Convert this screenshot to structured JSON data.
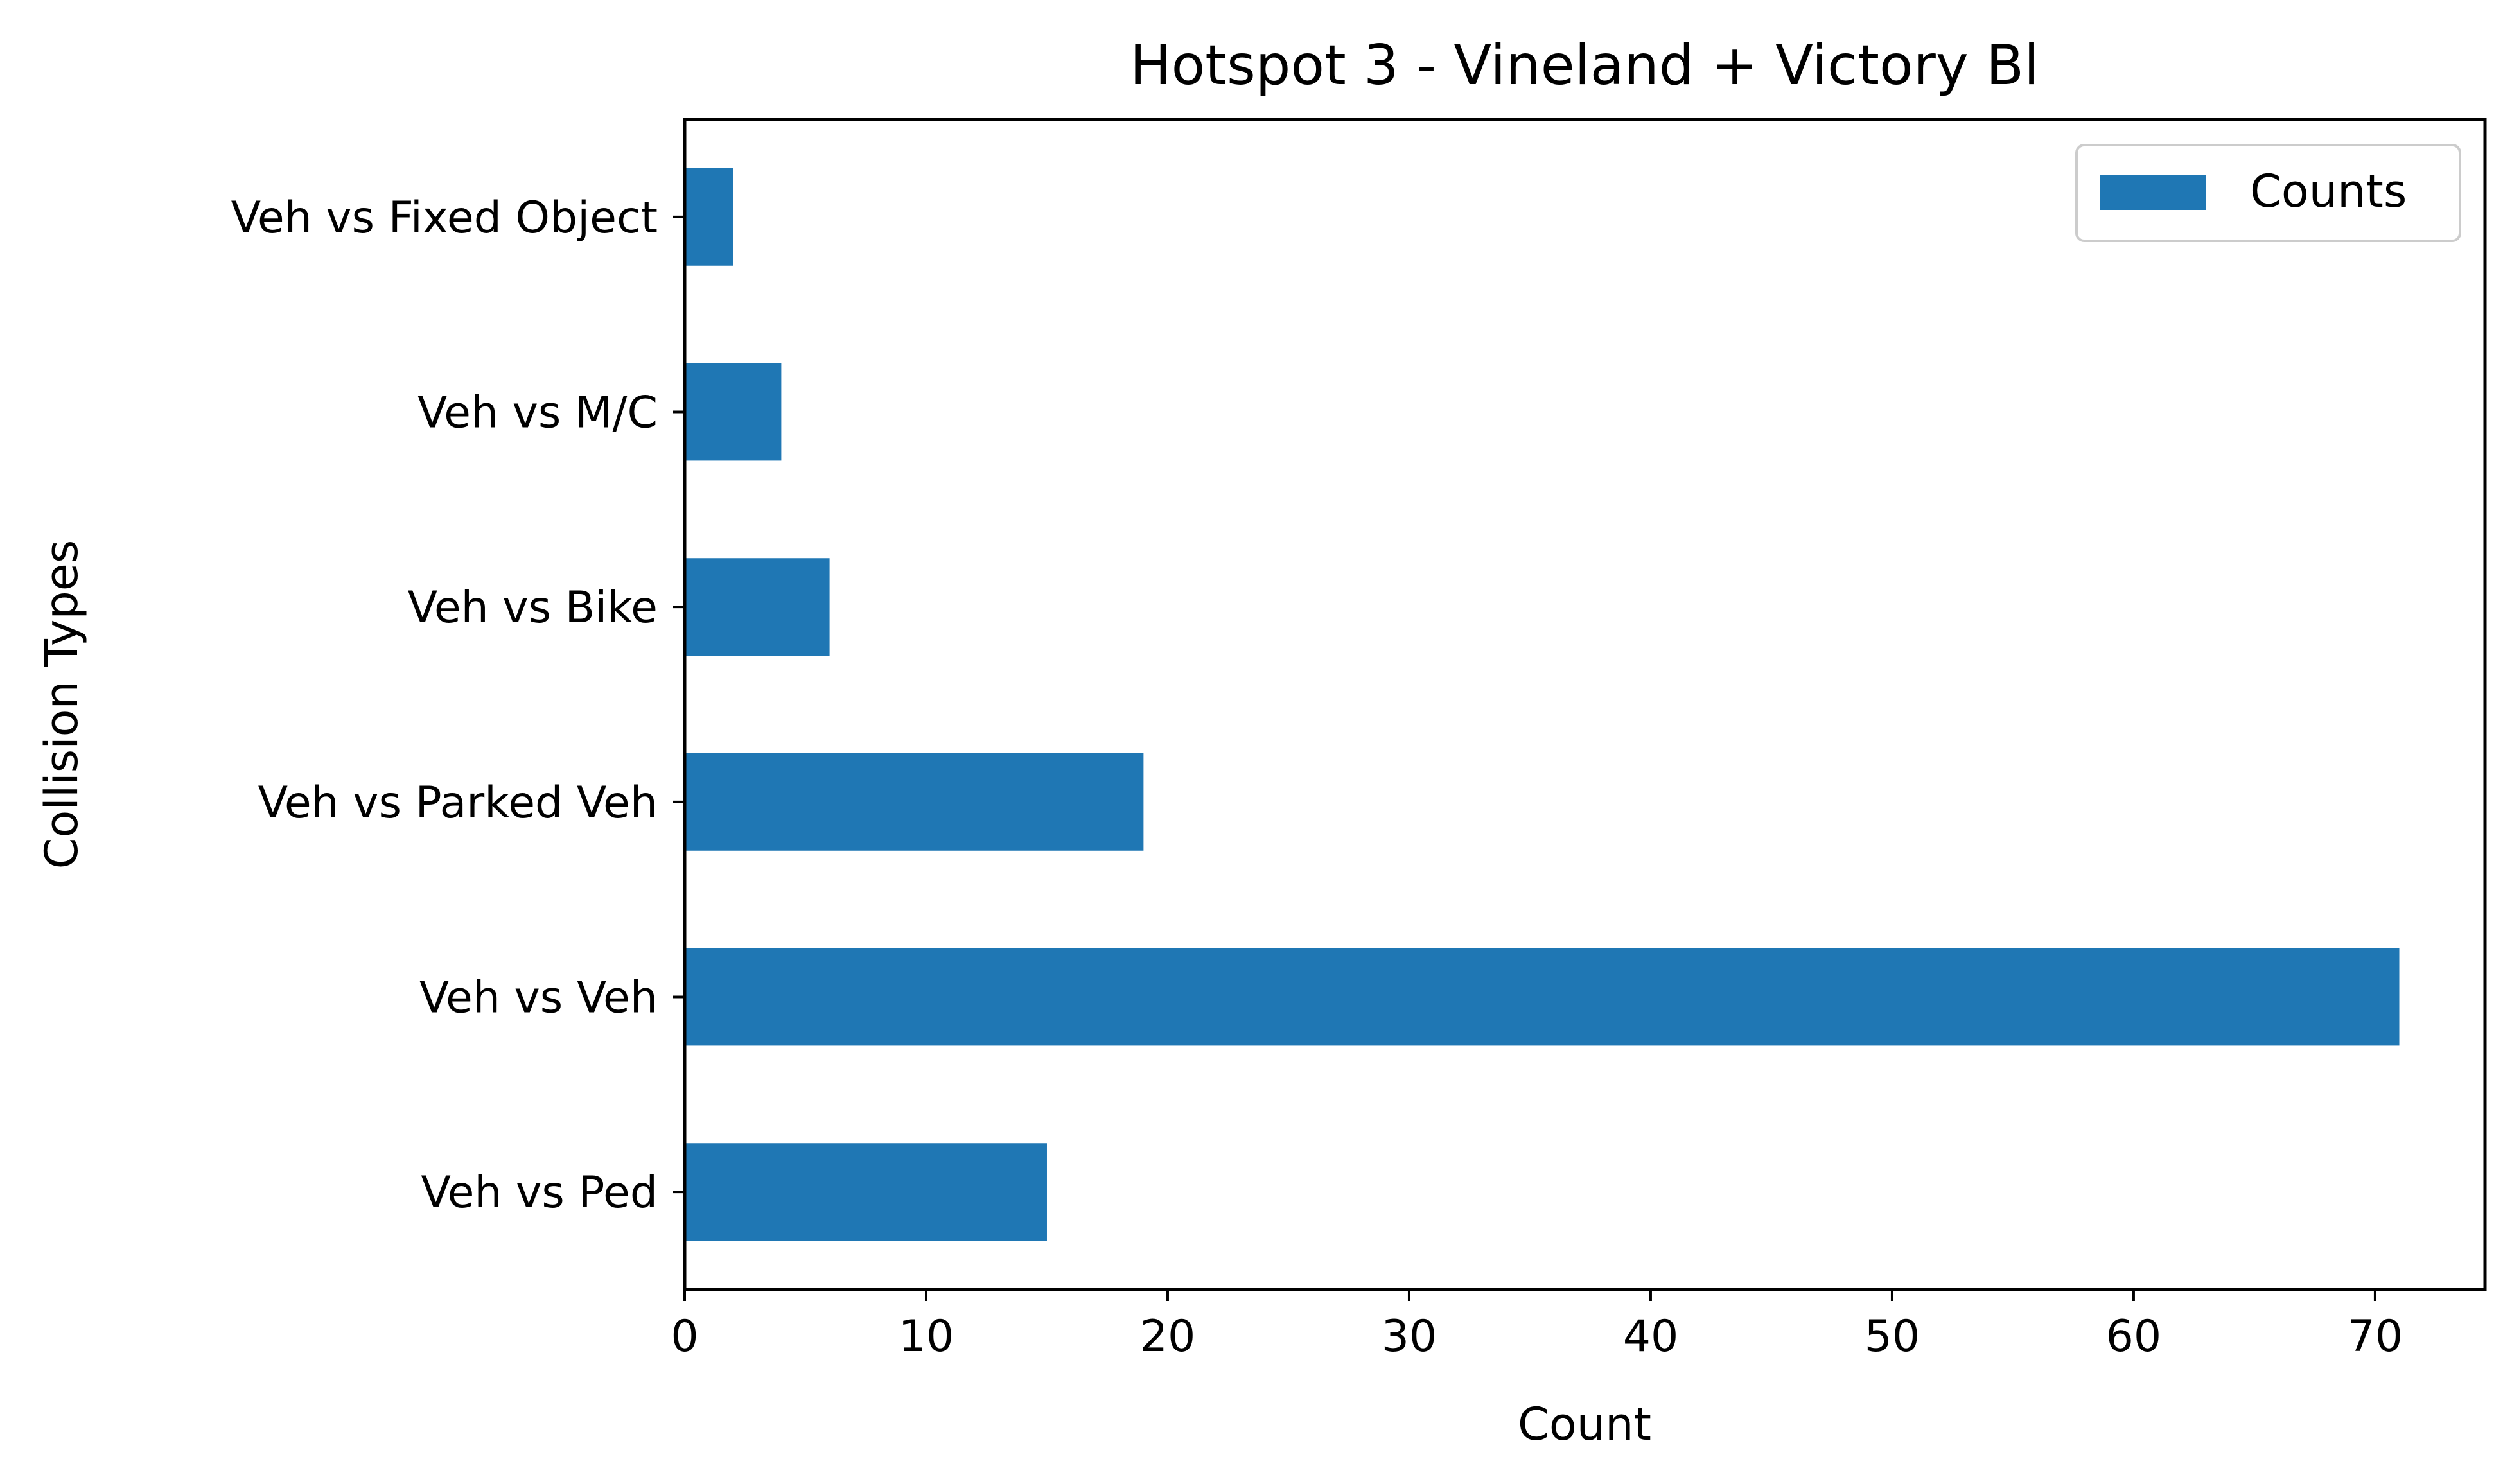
{
  "chart_data": {
    "type": "bar",
    "orientation": "horizontal",
    "title": "Hotspot 3 - Vineland + Victory Bl",
    "xlabel": "Count",
    "ylabel": "Collision Types",
    "categories": [
      "Veh vs Ped",
      "Veh vs Veh",
      "Veh vs Parked Veh",
      "Veh vs Bike",
      "Veh vs M/C",
      "Veh vs Fixed Object"
    ],
    "series": [
      {
        "name": "Counts",
        "values": [
          15,
          71,
          19,
          6,
          4,
          2
        ],
        "color": "#1f77b4"
      }
    ],
    "xlim": [
      0,
      74.55
    ],
    "xticks": [
      0,
      10,
      20,
      30,
      40,
      50,
      60,
      70
    ],
    "grid": false,
    "legend_position": "top-right"
  }
}
